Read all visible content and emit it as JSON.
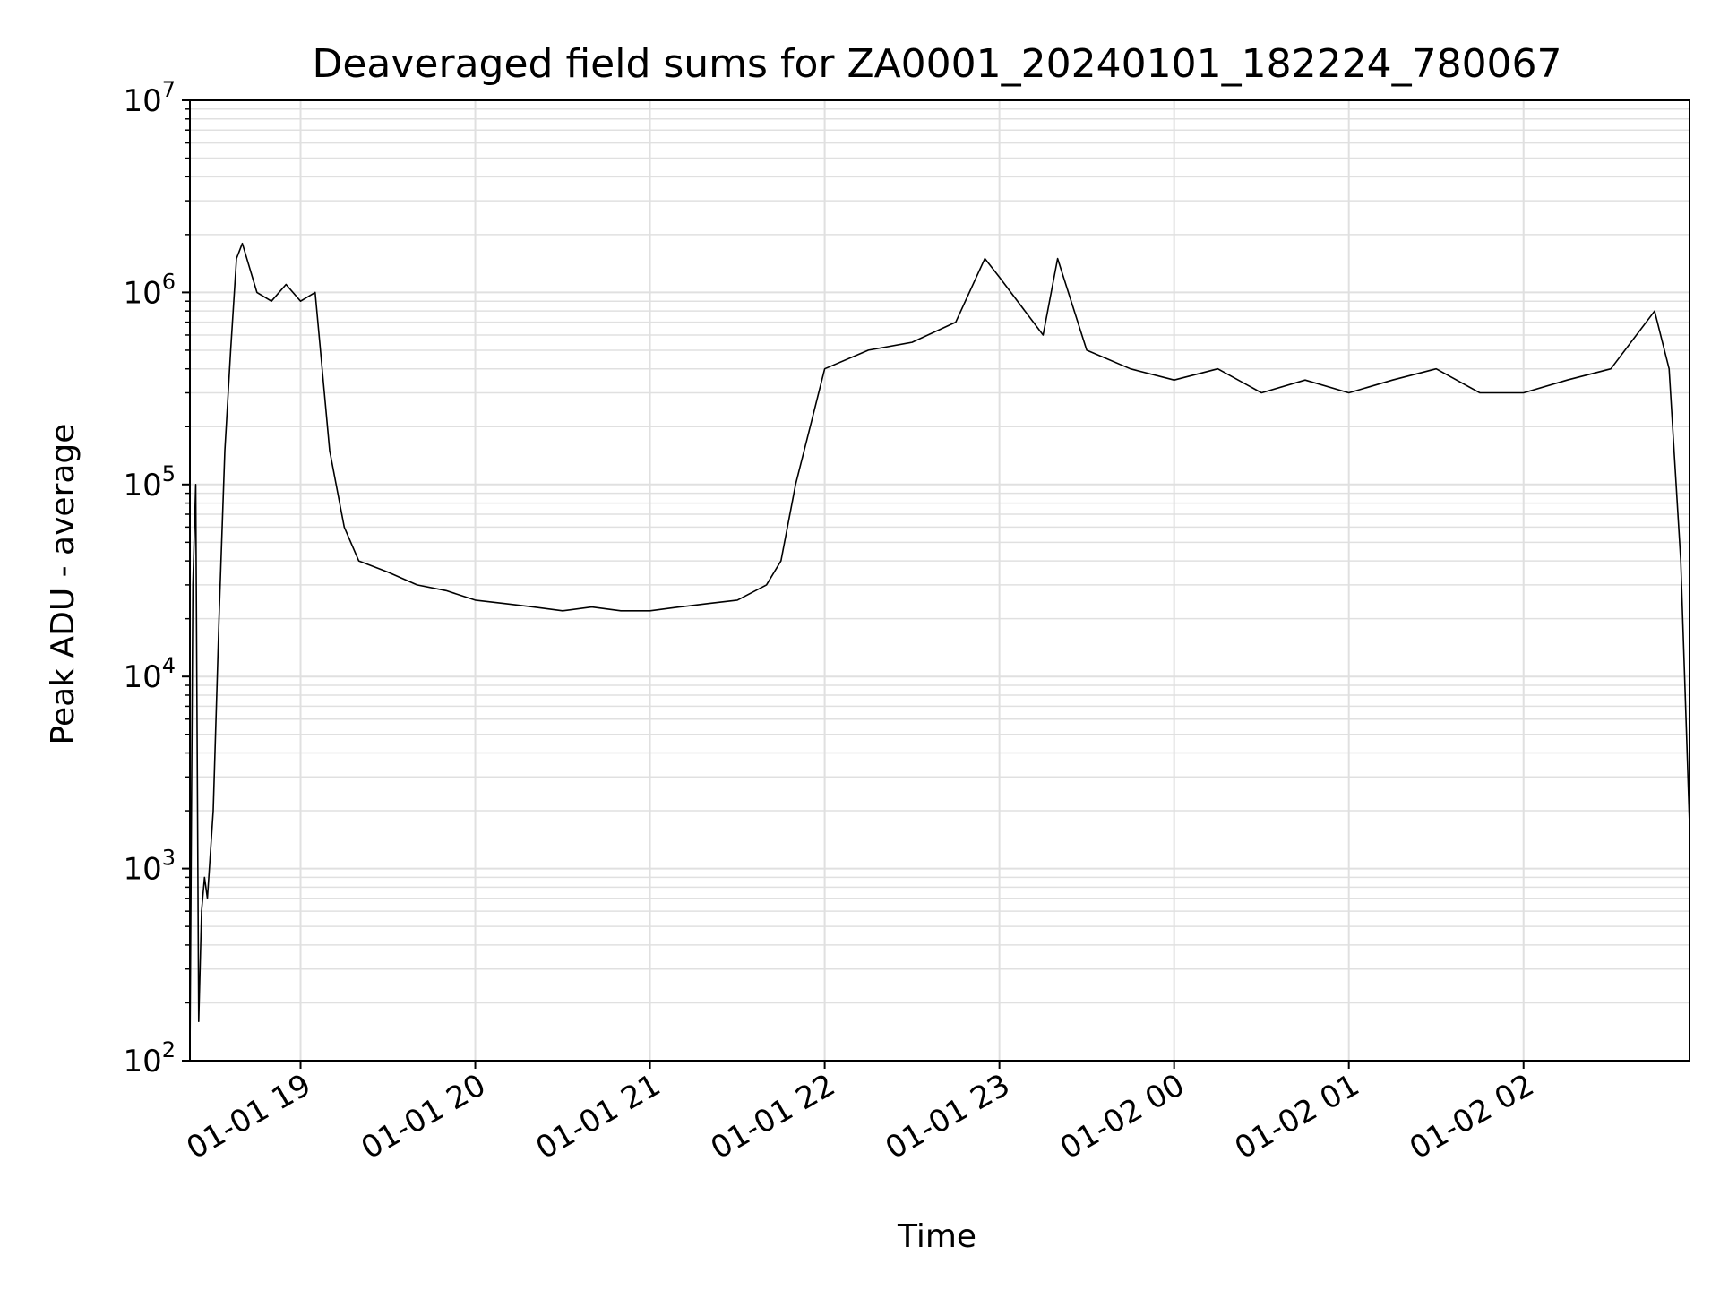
{
  "chart_data": {
    "type": "line",
    "title": "Deaveraged field sums for ZA0001_20240101_182224_780067",
    "xlabel": "Time",
    "ylabel": "Peak ADU - average",
    "yscale": "log",
    "ylim": [
      100,
      10000000
    ],
    "xlim": [
      "2024-01-01 18:22",
      "2024-01-02 02:57"
    ],
    "grid": true,
    "line_color": "#000000",
    "grid_color": "#e0e0e0",
    "x_ticks": [
      {
        "t": "2024-01-01 19:00",
        "label": "01-01 19"
      },
      {
        "t": "2024-01-01 20:00",
        "label": "01-01 20"
      },
      {
        "t": "2024-01-01 21:00",
        "label": "01-01 21"
      },
      {
        "t": "2024-01-01 22:00",
        "label": "01-01 22"
      },
      {
        "t": "2024-01-01 23:00",
        "label": "01-01 23"
      },
      {
        "t": "2024-01-02 00:00",
        "label": "01-02 00"
      },
      {
        "t": "2024-01-02 01:00",
        "label": "01-02 01"
      },
      {
        "t": "2024-01-02 02:00",
        "label": "01-02 02"
      }
    ],
    "y_ticks": [
      {
        "value": 100,
        "base": "10",
        "exp": "2"
      },
      {
        "value": 1000,
        "base": "10",
        "exp": "3"
      },
      {
        "value": 10000,
        "base": "10",
        "exp": "4"
      },
      {
        "value": 100000,
        "base": "10",
        "exp": "5"
      },
      {
        "value": 1000000,
        "base": "10",
        "exp": "6"
      },
      {
        "value": 10000000,
        "base": "10",
        "exp": "7"
      }
    ],
    "series": [
      {
        "x": [
          "2024-01-01 18:22",
          "2024-01-01 18:23",
          "2024-01-01 18:24",
          "2024-01-01 18:25",
          "2024-01-01 18:26",
          "2024-01-01 18:27",
          "2024-01-01 18:28",
          "2024-01-01 18:30",
          "2024-01-01 18:32",
          "2024-01-01 18:34",
          "2024-01-01 18:36",
          "2024-01-01 18:38",
          "2024-01-01 18:40",
          "2024-01-01 18:45",
          "2024-01-01 18:50",
          "2024-01-01 18:55",
          "2024-01-01 19:00",
          "2024-01-01 19:05",
          "2024-01-01 19:10",
          "2024-01-01 19:15",
          "2024-01-01 19:20",
          "2024-01-01 19:30",
          "2024-01-01 19:40",
          "2024-01-01 19:50",
          "2024-01-01 20:00",
          "2024-01-01 20:10",
          "2024-01-01 20:20",
          "2024-01-01 20:30",
          "2024-01-01 20:40",
          "2024-01-01 20:50",
          "2024-01-01 21:00",
          "2024-01-01 21:10",
          "2024-01-01 21:20",
          "2024-01-01 21:30",
          "2024-01-01 21:40",
          "2024-01-01 21:45",
          "2024-01-01 21:50",
          "2024-01-01 21:55",
          "2024-01-01 22:00",
          "2024-01-01 22:15",
          "2024-01-01 22:30",
          "2024-01-01 22:45",
          "2024-01-01 22:55",
          "2024-01-01 23:00",
          "2024-01-01 23:15",
          "2024-01-01 23:20",
          "2024-01-01 23:30",
          "2024-01-01 23:45",
          "2024-01-02 00:00",
          "2024-01-02 00:15",
          "2024-01-02 00:30",
          "2024-01-02 00:45",
          "2024-01-02 01:00",
          "2024-01-02 01:15",
          "2024-01-02 01:30",
          "2024-01-02 01:45",
          "2024-01-02 02:00",
          "2024-01-02 02:15",
          "2024-01-02 02:30",
          "2024-01-02 02:45",
          "2024-01-02 02:50",
          "2024-01-02 02:54",
          "2024-01-02 02:57"
        ],
        "y": [
          100,
          30000,
          100000,
          160,
          600,
          900,
          700,
          2000,
          20000,
          150000,
          500000,
          1500000,
          1800000,
          1000000,
          900000,
          1100000,
          900000,
          1000000,
          150000,
          60000,
          40000,
          35000,
          30000,
          28000,
          25000,
          24000,
          23000,
          22000,
          23000,
          22000,
          22000,
          23000,
          24000,
          25000,
          30000,
          40000,
          100000,
          200000,
          400000,
          500000,
          550000,
          700000,
          1500000,
          1200000,
          600000,
          1500000,
          500000,
          400000,
          350000,
          400000,
          300000,
          350000,
          300000,
          350000,
          400000,
          300000,
          300000,
          350000,
          400000,
          800000,
          400000,
          40000,
          1700
        ]
      }
    ]
  }
}
